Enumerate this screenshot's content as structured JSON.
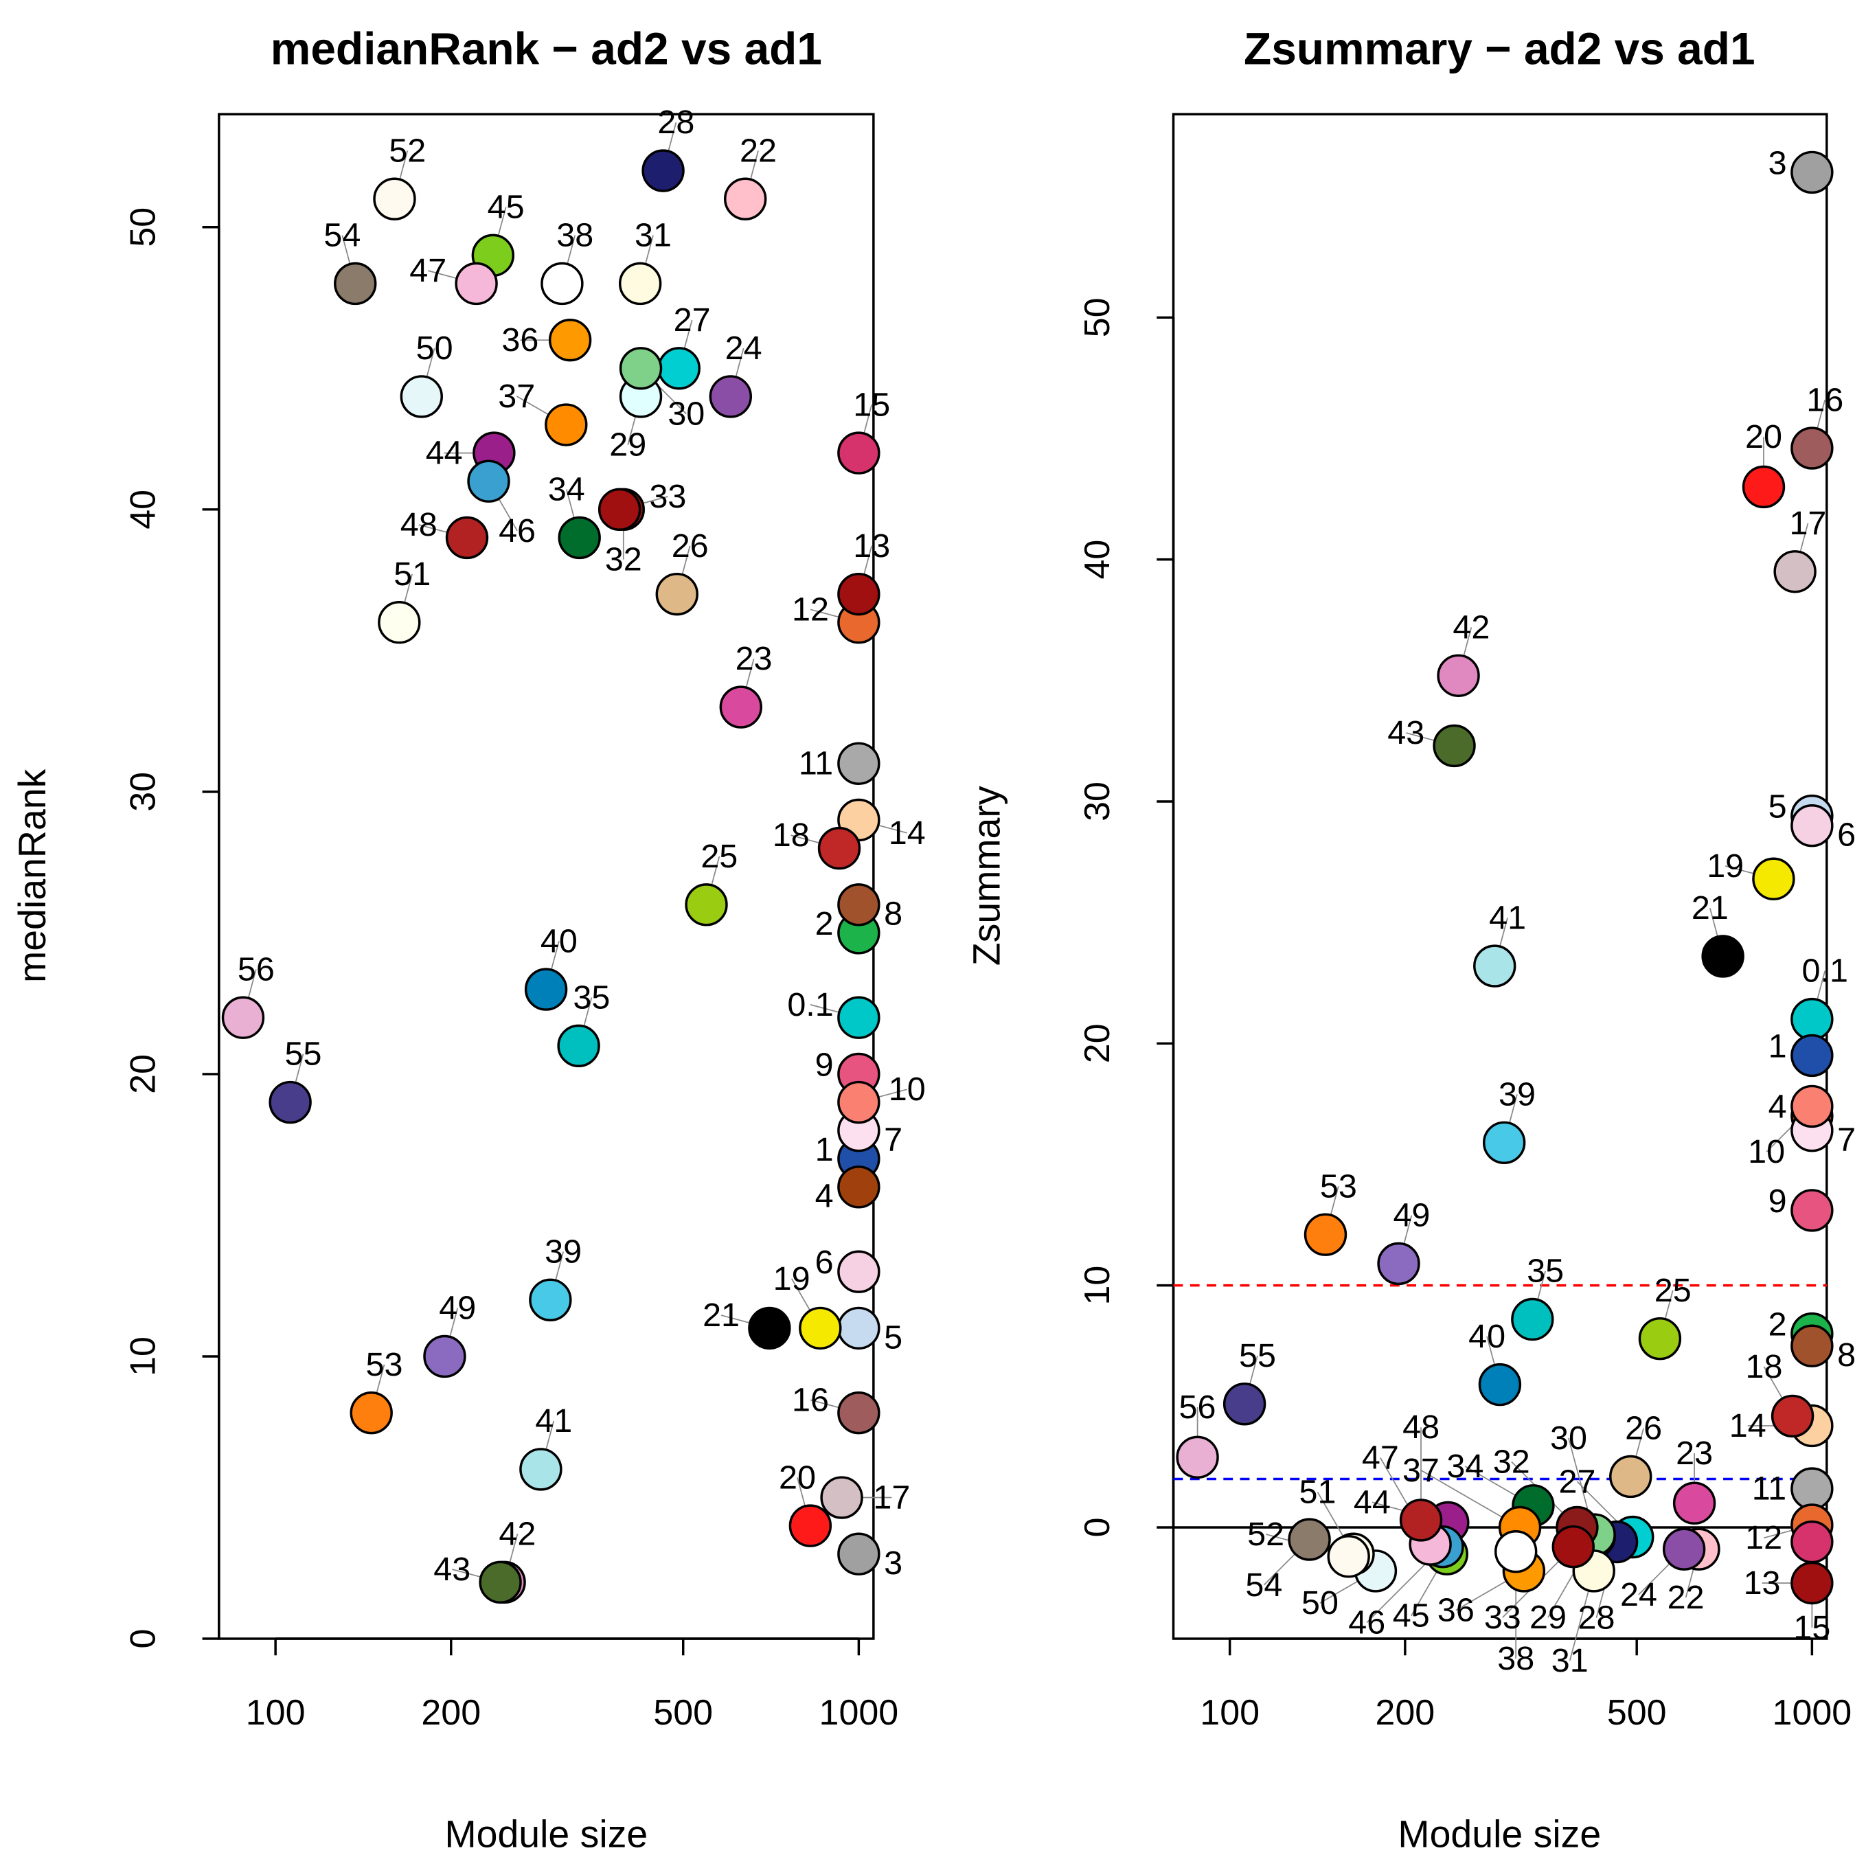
{
  "chart_data": [
    {
      "type": "scatter",
      "title": "medianRank − ad2 vs ad1",
      "xlabel": "Module size",
      "ylabel": "medianRank",
      "xscale": "log",
      "xlim": [
        80,
        1060
      ],
      "ylim": [
        0,
        54
      ],
      "xticks": [
        100,
        200,
        500,
        1000
      ],
      "yticks": [
        0,
        10,
        20,
        30,
        40,
        50
      ],
      "hlines": []
    },
    {
      "type": "scatter",
      "title": "Zsummary − ad2 vs ad1",
      "xlabel": "Module size",
      "ylabel": "Zsummary",
      "xscale": "log",
      "xlim": [
        80,
        1060
      ],
      "ylim": [
        -4.6,
        58.4
      ],
      "xticks": [
        100,
        200,
        500,
        1000
      ],
      "yticks": [
        0,
        10,
        20,
        30,
        40,
        50
      ],
      "hlines": [
        {
          "y": 0,
          "color": "#000000",
          "dash": false
        },
        {
          "y": 10,
          "color": "#ff0000",
          "dash": true
        },
        {
          "y": 2,
          "color": "#0000ff",
          "dash": true
        }
      ]
    }
  ],
  "modules": [
    {
      "label": "0.1",
      "size": 1000,
      "medianRank": 22,
      "zsummary": 21,
      "color": "#00c8c8"
    },
    {
      "label": "1",
      "size": 1000,
      "medianRank": 17,
      "zsummary": 19.5,
      "color": "#1f4fa8"
    },
    {
      "label": "2",
      "size": 1000,
      "medianRank": 25,
      "zsummary": 8,
      "color": "#1cb34a"
    },
    {
      "label": "3",
      "size": 1000,
      "medianRank": 3,
      "zsummary": 56,
      "color": "#a0a0a0"
    },
    {
      "label": "4",
      "size": 1000,
      "medianRank": 16,
      "zsummary": 17,
      "color": "#a0410d"
    },
    {
      "label": "5",
      "size": 1000,
      "medianRank": 11,
      "zsummary": 29.4,
      "color": "#c6dbef"
    },
    {
      "label": "6",
      "size": 1000,
      "medianRank": 13,
      "zsummary": 29,
      "color": "#f6d0e3"
    },
    {
      "label": "7",
      "size": 1000,
      "medianRank": 18,
      "zsummary": 16.4,
      "color": "#fde0ef"
    },
    {
      "label": "8",
      "size": 1000,
      "medianRank": 26,
      "zsummary": 7.5,
      "color": "#a0522d"
    },
    {
      "label": "9",
      "size": 1000,
      "medianRank": 20,
      "zsummary": 13.1,
      "color": "#e75480"
    },
    {
      "label": "10",
      "size": 1000,
      "medianRank": 19,
      "zsummary": 17.4,
      "color": "#fa8072"
    },
    {
      "label": "11",
      "size": 1000,
      "medianRank": 31,
      "zsummary": 1.6,
      "color": "#a9a9a9"
    },
    {
      "label": "12",
      "size": 1000,
      "medianRank": 36,
      "zsummary": 0.1,
      "color": "#e8682e"
    },
    {
      "label": "13",
      "size": 1000,
      "medianRank": 37,
      "zsummary": -2.3,
      "color": "#a01010"
    },
    {
      "label": "14",
      "size": 1000,
      "medianRank": 29,
      "zsummary": 4.2,
      "color": "#fdd0a2"
    },
    {
      "label": "15",
      "size": 1000,
      "medianRank": 42,
      "zsummary": -0.6,
      "color": "#d6336c"
    },
    {
      "label": "16",
      "size": 1000,
      "medianRank": 8,
      "zsummary": 44.6,
      "color": "#9e5c5c"
    },
    {
      "label": "17",
      "size": 935,
      "medianRank": 5,
      "zsummary": 39.5,
      "color": "#d4bfc4"
    },
    {
      "label": "18",
      "size": 926,
      "medianRank": 28,
      "zsummary": 4.6,
      "color": "#c02828"
    },
    {
      "label": "19",
      "size": 859,
      "medianRank": 11,
      "zsummary": 26.8,
      "color": "#f5e900"
    },
    {
      "label": "20",
      "size": 826,
      "medianRank": 4,
      "zsummary": 43,
      "color": "#ff1a1a"
    },
    {
      "label": "21",
      "size": 703,
      "medianRank": 11,
      "zsummary": 23.6,
      "color": "#000000"
    },
    {
      "label": "22",
      "size": 639,
      "medianRank": 51,
      "zsummary": -0.9,
      "color": "#ffc0cb"
    },
    {
      "label": "23",
      "size": 628,
      "medianRank": 33,
      "zsummary": 1,
      "color": "#d94a9e"
    },
    {
      "label": "24",
      "size": 603,
      "medianRank": 44,
      "zsummary": -0.9,
      "color": "#8b4ea6"
    },
    {
      "label": "25",
      "size": 548,
      "medianRank": 26,
      "zsummary": 7.8,
      "color": "#9acd12"
    },
    {
      "label": "26",
      "size": 488,
      "medianRank": 37,
      "zsummary": 2.1,
      "color": "#deb887"
    },
    {
      "label": "27",
      "size": 492,
      "medianRank": 45,
      "zsummary": -0.4,
      "color": "#00ced1"
    },
    {
      "label": "28",
      "size": 462,
      "medianRank": 52,
      "zsummary": -0.6,
      "color": "#1e1e6e"
    },
    {
      "label": "29",
      "size": 423,
      "medianRank": 44,
      "zsummary": -0.4,
      "color": "#e0ffff"
    },
    {
      "label": "30",
      "size": 423,
      "medianRank": 45,
      "zsummary": -0.3,
      "color": "#7fd18a"
    },
    {
      "label": "31",
      "size": 422,
      "medianRank": 48,
      "zsummary": -1.8,
      "color": "#fffbe0"
    },
    {
      "label": "32",
      "size": 395,
      "medianRank": 40,
      "zsummary": 0,
      "color": "#8b1a1a"
    },
    {
      "label": "33",
      "size": 389,
      "medianRank": 40,
      "zsummary": -0.8,
      "color": "#a01010"
    },
    {
      "label": "34",
      "size": 332,
      "medianRank": 39,
      "zsummary": 0.9,
      "color": "#006d2c"
    },
    {
      "label": "35",
      "size": 331,
      "medianRank": 21,
      "zsummary": 8.6,
      "color": "#00bfbf"
    },
    {
      "label": "36",
      "size": 320,
      "medianRank": 46,
      "zsummary": -1.8,
      "color": "#ff9900"
    },
    {
      "label": "37",
      "size": 315,
      "medianRank": 43,
      "zsummary": 0,
      "color": "#ff8c00"
    },
    {
      "label": "38",
      "size": 310,
      "medianRank": 48,
      "zsummary": -1,
      "color": "#ffffff"
    },
    {
      "label": "39",
      "size": 296,
      "medianRank": 12,
      "zsummary": 15.9,
      "color": "#48c9e8"
    },
    {
      "label": "40",
      "size": 291,
      "medianRank": 23,
      "zsummary": 5.9,
      "color": "#0080b8"
    },
    {
      "label": "41",
      "size": 285,
      "medianRank": 6,
      "zsummary": 23.2,
      "color": "#a8e4e8"
    },
    {
      "label": "42",
      "size": 247,
      "medianRank": 2,
      "zsummary": 35.2,
      "color": "#e088c0"
    },
    {
      "label": "43",
      "size": 243,
      "medianRank": 2,
      "zsummary": 32.3,
      "color": "#4a6b2a"
    },
    {
      "label": "44",
      "size": 237,
      "medianRank": 42,
      "zsummary": 0.2,
      "color": "#9a1f8a"
    },
    {
      "label": "45",
      "size": 236,
      "medianRank": 49,
      "zsummary": -1.1,
      "color": "#7ccd1c"
    },
    {
      "label": "46",
      "size": 232,
      "medianRank": 41,
      "zsummary": -0.8,
      "color": "#3aa0d0"
    },
    {
      "label": "47",
      "size": 221,
      "medianRank": 48,
      "zsummary": -0.7,
      "color": "#f5b8d8"
    },
    {
      "label": "48",
      "size": 213,
      "medianRank": 39,
      "zsummary": 0.3,
      "color": "#b22222"
    },
    {
      "label": "49",
      "size": 195,
      "medianRank": 10,
      "zsummary": 10.9,
      "color": "#8a6bbf"
    },
    {
      "label": "50",
      "size": 178,
      "medianRank": 44,
      "zsummary": -1.8,
      "color": "#e6f7fa"
    },
    {
      "label": "51",
      "size": 163,
      "medianRank": 36,
      "zsummary": -1.1,
      "color": "#fffff0"
    },
    {
      "label": "52",
      "size": 160,
      "medianRank": 51,
      "zsummary": -1.2,
      "color": "#fffaf0"
    },
    {
      "label": "53",
      "size": 146,
      "medianRank": 8,
      "zsummary": 12.1,
      "color": "#ff7f0e"
    },
    {
      "label": "54",
      "size": 137,
      "medianRank": 48,
      "zsummary": -0.5,
      "color": "#8b7b6b"
    },
    {
      "label": "55",
      "size": 106,
      "medianRank": 19,
      "zsummary": 5.1,
      "color": "#483d8b"
    },
    {
      "label": "56",
      "size": 88,
      "medianRank": 22,
      "zsummary": 2.9,
      "color": "#eab0d4"
    }
  ]
}
